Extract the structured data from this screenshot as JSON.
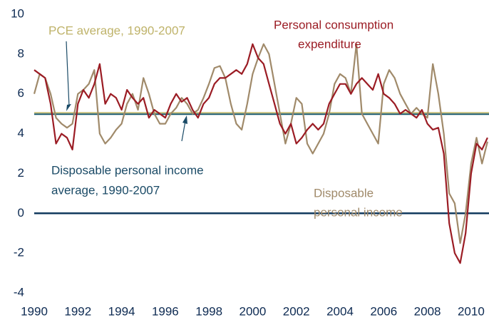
{
  "chart_data": {
    "type": "line",
    "x": [
      1990,
      1990.25,
      1990.5,
      1990.75,
      1991,
      1991.25,
      1991.5,
      1991.75,
      1992,
      1992.25,
      1992.5,
      1992.75,
      1993,
      1993.25,
      1993.5,
      1993.75,
      1994,
      1994.25,
      1994.5,
      1994.75,
      1995,
      1995.25,
      1995.5,
      1995.75,
      1996,
      1996.25,
      1996.5,
      1996.75,
      1997,
      1997.25,
      1997.5,
      1997.75,
      1998,
      1998.25,
      1998.5,
      1998.75,
      1999,
      1999.25,
      1999.5,
      1999.75,
      2000,
      2000.25,
      2000.5,
      2000.75,
      2001,
      2001.25,
      2001.5,
      2001.75,
      2002,
      2002.25,
      2002.5,
      2002.75,
      2003,
      2003.25,
      2003.5,
      2003.75,
      2004,
      2004.25,
      2004.5,
      2004.75,
      2005,
      2005.25,
      2005.5,
      2005.75,
      2006,
      2006.25,
      2006.5,
      2006.75,
      2007,
      2007.25,
      2007.5,
      2007.75,
      2008,
      2008.25,
      2008.5,
      2008.75,
      2009,
      2009.25,
      2009.5,
      2009.75,
      2010,
      2010.25,
      2010.5,
      2010.75
    ],
    "series": [
      {
        "name": [
          "Personal consumption",
          "expenditure"
        ],
        "color": "#9b1c24",
        "values": [
          7.2,
          7.0,
          6.8,
          5.5,
          3.5,
          4.0,
          3.8,
          3.2,
          5.5,
          6.2,
          5.8,
          6.5,
          7.5,
          5.5,
          6.0,
          5.8,
          5.2,
          6.2,
          5.8,
          5.5,
          5.8,
          4.8,
          5.2,
          5.0,
          4.8,
          5.5,
          6.0,
          5.6,
          5.8,
          5.2,
          4.8,
          5.5,
          5.8,
          6.5,
          6.8,
          6.8,
          7.0,
          7.2,
          7.0,
          7.5,
          8.5,
          7.8,
          7.5,
          6.5,
          5.5,
          4.5,
          4.0,
          4.5,
          3.5,
          3.8,
          4.2,
          4.5,
          4.2,
          4.5,
          5.5,
          6.0,
          6.5,
          6.5,
          6.0,
          6.5,
          6.8,
          6.5,
          6.2,
          7.0,
          6.0,
          5.8,
          5.5,
          5.0,
          5.2,
          5.0,
          4.8,
          5.2,
          4.5,
          4.2,
          4.3,
          3.0,
          -0.5,
          -2.0,
          -2.5,
          -1.0,
          2.0,
          3.5,
          3.2,
          3.8
        ]
      },
      {
        "name": [
          "Disposable",
          "personal income"
        ],
        "color": "#a08a6a",
        "values": [
          6.0,
          7.0,
          6.8,
          6.0,
          4.8,
          4.5,
          4.3,
          4.5,
          6.0,
          6.2,
          6.5,
          7.2,
          4.0,
          3.5,
          3.8,
          4.2,
          4.5,
          5.5,
          6.0,
          5.2,
          6.8,
          6.0,
          5.0,
          4.5,
          4.5,
          5.0,
          5.3,
          5.8,
          5.5,
          5.0,
          5.2,
          5.8,
          6.5,
          7.3,
          7.4,
          6.8,
          5.5,
          4.5,
          4.2,
          5.5,
          7.0,
          7.8,
          8.5,
          8.0,
          6.5,
          5.0,
          3.5,
          4.5,
          5.8,
          5.5,
          3.5,
          3.0,
          3.5,
          4.0,
          5.0,
          6.5,
          7.0,
          6.8,
          6.0,
          8.5,
          5.0,
          4.5,
          4.0,
          3.5,
          6.5,
          7.2,
          6.8,
          6.0,
          5.5,
          5.0,
          5.3,
          5.0,
          4.8,
          7.5,
          6.0,
          4.0,
          1.0,
          0.5,
          -1.5,
          0.0,
          2.5,
          3.8,
          2.5,
          3.6
        ]
      }
    ],
    "reference_lines": [
      {
        "label": [
          "PCE average, 1990-2007"
        ],
        "value": 5.05,
        "color": "#c8bf7a"
      },
      {
        "label": [
          "Disposable personal income",
          "average, 1990-2007"
        ],
        "value": 4.98,
        "color": "#1a5a6e"
      }
    ],
    "zero_line_color": "#123a5e",
    "xlim": [
      1990,
      2010.82
    ],
    "xticks": [
      1990,
      1992,
      1994,
      1996,
      1998,
      2000,
      2002,
      2004,
      2006,
      2008,
      2010
    ],
    "ylim": [
      -4,
      10
    ],
    "yticks": [
      -4,
      -2,
      0,
      2,
      4,
      6,
      8,
      10
    ],
    "grid": false
  }
}
